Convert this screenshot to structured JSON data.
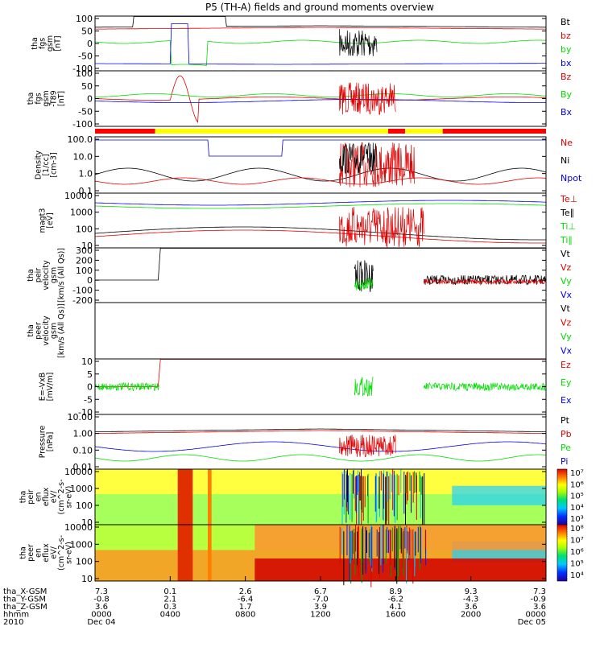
{
  "title": "P5 (TH-A) fields and ground moments overview",
  "colors": {
    "black": "#000000",
    "red": "#e00000",
    "green": "#00dd00",
    "blue": "#0000ee",
    "yellow": "#ffff00"
  },
  "chart_data": {
    "type": "line",
    "panels": [
      {
        "id": "fgs",
        "ylabel_lines": [
          "tha",
          "fgs",
          "gsm",
          "[nT]"
        ],
        "yticks": [
          "100",
          "50",
          "0",
          "-50",
          "-100"
        ],
        "legend": [
          {
            "label": "Bt",
            "color": "#000000"
          },
          {
            "label": "bz",
            "color": "#e00000"
          },
          {
            "label": "by",
            "color": "#00dd00"
          },
          {
            "label": "bx",
            "color": "#0000ee"
          }
        ]
      },
      {
        "id": "fgs_t89",
        "ylabel_lines": [
          "tha",
          "fgs",
          "gsm",
          "-T89",
          "[nT]"
        ],
        "yticks": [
          "100",
          "50",
          "0",
          "-50",
          "-100"
        ],
        "legend": [
          {
            "label": "Bz",
            "color": "#e00000"
          },
          {
            "label": "By",
            "color": "#00dd00"
          },
          {
            "label": "Bx",
            "color": "#0000ee"
          }
        ]
      },
      {
        "id": "density",
        "ylabel_lines": [
          "Density",
          "[1/cc]",
          "[cm-3]"
        ],
        "yticks": [
          "100.0",
          "10.0",
          "1.0",
          "0.1"
        ],
        "legend": [
          {
            "label": "Ne",
            "color": "#e00000"
          },
          {
            "label": "Ni",
            "color": "#000000"
          },
          {
            "label": "Npot",
            "color": "#0000ee"
          }
        ]
      },
      {
        "id": "temperature",
        "ylabel_lines": [
          "magt3",
          "[eV]"
        ],
        "yticks": [
          "10000",
          "1000",
          "100",
          "10"
        ],
        "legend": [
          {
            "label": "Te⊥",
            "color": "#e00000"
          },
          {
            "label": "Te∥",
            "color": "#000000"
          },
          {
            "label": "Ti⊥",
            "color": "#00dd00"
          },
          {
            "label": "Ti∥",
            "color": "#00dd00"
          }
        ]
      },
      {
        "id": "peir_velocity",
        "ylabel_lines": [
          "tha",
          "peir",
          "velocity",
          "gsm",
          "[km/s (All Qs)]"
        ],
        "yticks": [
          "300",
          "200",
          "100",
          "0",
          "-100",
          "-200"
        ],
        "legend": [
          {
            "label": "Vt",
            "color": "#000000"
          },
          {
            "label": "Vz",
            "color": "#e00000"
          },
          {
            "label": "Vy",
            "color": "#00dd00"
          },
          {
            "label": "Vx",
            "color": "#0000ee"
          }
        ]
      },
      {
        "id": "peer_velocity",
        "ylabel_lines": [
          "tha",
          "peer",
          "velocity",
          "gsm",
          "[km/s (All Qs)]"
        ],
        "yticks": [],
        "legend": [
          {
            "label": "Vt",
            "color": "#000000"
          },
          {
            "label": "Vz",
            "color": "#e00000"
          },
          {
            "label": "Vy",
            "color": "#00dd00"
          },
          {
            "label": "Vx",
            "color": "#0000ee"
          }
        ]
      },
      {
        "id": "efield",
        "ylabel_lines": [
          "E=-VxB",
          "[mV/m]"
        ],
        "yticks": [
          "10",
          "5",
          "0",
          "-5",
          "-10"
        ],
        "legend": [
          {
            "label": "Ez",
            "color": "#e00000"
          },
          {
            "label": "Ey",
            "color": "#00dd00"
          },
          {
            "label": "Ex",
            "color": "#0000ee"
          }
        ]
      },
      {
        "id": "pressure",
        "ylabel_lines": [
          "Pressure",
          "[nPa]"
        ],
        "yticks": [
          "10.00",
          "1.00",
          "0.10",
          "0.01"
        ],
        "legend": [
          {
            "label": "Pt",
            "color": "#000000"
          },
          {
            "label": "Pb",
            "color": "#e00000"
          },
          {
            "label": "Pe",
            "color": "#00dd00"
          },
          {
            "label": "Pi",
            "color": "#0000ee"
          }
        ]
      },
      {
        "id": "peir_eflux",
        "ylabel_lines": [
          "tha",
          "peir",
          "en",
          "eflux",
          "eV/",
          "(cm^2-s-",
          "sr-eV)"
        ],
        "yticks": [
          "10000",
          "1000",
          "100",
          "10"
        ],
        "colorbar_labels": [
          "10⁷",
          "10⁶",
          "10⁵",
          "10⁴",
          "10³"
        ]
      },
      {
        "id": "peer_eflux",
        "ylabel_lines": [
          "tha",
          "peer",
          "en",
          "eflux",
          "eV/",
          "(cm^2-s-",
          "sr-eV)"
        ],
        "yticks": [
          "10000",
          "1000",
          "100",
          "10"
        ],
        "colorbar_labels": [
          "10⁸",
          "10⁷",
          "10⁶",
          "10⁵",
          "10⁴"
        ]
      }
    ],
    "x_axis": {
      "row_labels": [
        "tha_X-GSM",
        "tha_Y-GSM",
        "tha_Z-GSM",
        "hhmm",
        "2010"
      ],
      "columns": [
        {
          "values": [
            "7.3",
            "-0.8",
            "3.6",
            "0000",
            "Dec 04"
          ]
        },
        {
          "values": [
            "0.1",
            "2.1",
            "0.3",
            "0400",
            ""
          ]
        },
        {
          "values": [
            "2.6",
            "-6.4",
            "1.7",
            "0800",
            ""
          ]
        },
        {
          "values": [
            "6.7",
            "-7.0",
            "3.9",
            "1200",
            ""
          ]
        },
        {
          "values": [
            "8.9",
            "-6.2",
            "4.1",
            "1600",
            ""
          ]
        },
        {
          "values": [
            "9.3",
            "-4.3",
            "3.6",
            "2000",
            ""
          ]
        },
        {
          "values": [
            "7.3",
            "-0.9",
            "3.6",
            "0000",
            "Dec 05"
          ]
        }
      ]
    },
    "mode_bar": {
      "segments": [
        {
          "from_hour": 0.0,
          "to_hour": 3.2,
          "color": "#ff0000"
        },
        {
          "from_hour": 3.2,
          "to_hour": 15.6,
          "color": "#ffff00"
        },
        {
          "from_hour": 15.6,
          "to_hour": 16.5,
          "color": "#ff0000"
        },
        {
          "from_hour": 16.5,
          "to_hour": 18.5,
          "color": "#ffff00"
        },
        {
          "from_hour": 18.5,
          "to_hour": 24.0,
          "color": "#ff0000"
        }
      ]
    }
  }
}
